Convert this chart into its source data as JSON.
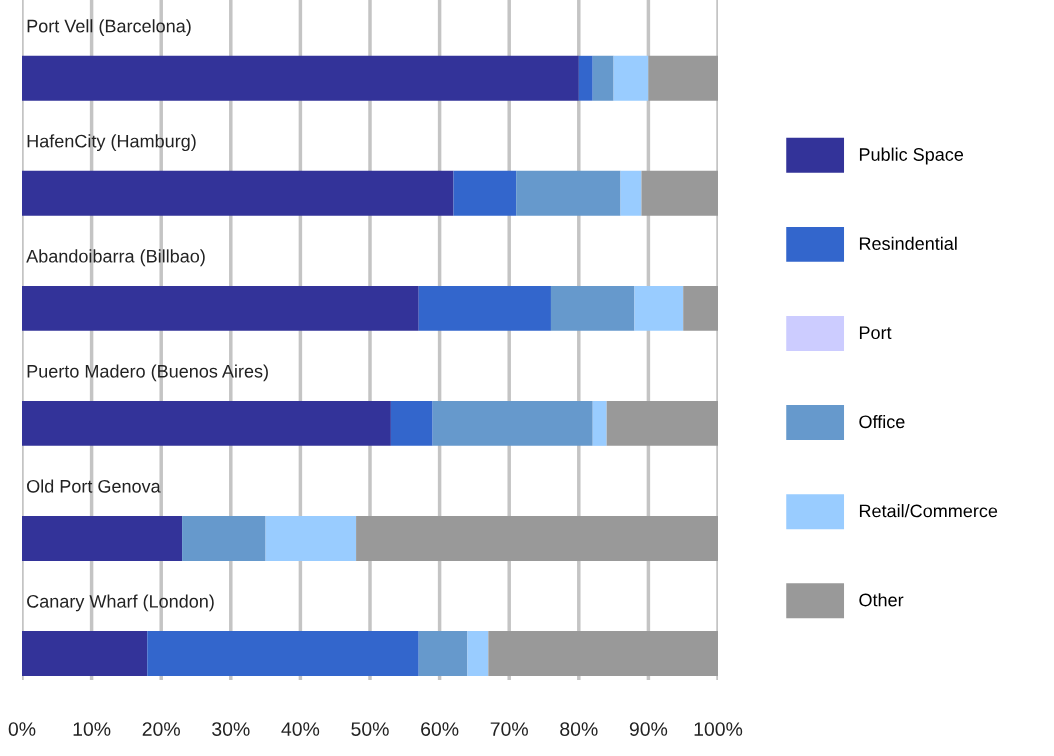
{
  "chart_data": {
    "type": "bar",
    "orientation": "horizontal",
    "stacked": true,
    "categories": [
      "Port Vell (Barcelona)",
      "HafenCity (Hamburg)",
      "Abandoibarra (Billbao)",
      "Puerto Madero (Buenos Aires)",
      "Old Port Genova",
      "Canary Wharf (London)"
    ],
    "series": [
      {
        "name": "Public Space",
        "color": "#333399",
        "values": [
          80,
          62,
          57,
          53,
          23,
          18
        ]
      },
      {
        "name": "Resindential",
        "color": "#3366cc",
        "values": [
          2,
          9,
          19,
          6,
          0,
          39
        ]
      },
      {
        "name": "Port",
        "color": "#ccccff",
        "values": [
          0,
          0,
          0,
          0,
          0,
          0
        ]
      },
      {
        "name": "Office",
        "color": "#6699cc",
        "values": [
          3,
          15,
          12,
          23,
          12,
          7
        ]
      },
      {
        "name": "Retail/Commerce",
        "color": "#99ccff",
        "values": [
          5,
          3,
          7,
          2,
          13,
          3
        ]
      },
      {
        "name": "Other",
        "color": "#999999",
        "values": [
          10,
          11,
          5,
          16,
          52,
          33
        ]
      }
    ],
    "xlim": [
      0,
      100
    ],
    "xticks": [
      {
        "value": 0,
        "label": "0%"
      },
      {
        "value": 10,
        "label": "10%"
      },
      {
        "value": 20,
        "label": "20%"
      },
      {
        "value": 30,
        "label": "30%"
      },
      {
        "value": 40,
        "label": "40%"
      },
      {
        "value": 50,
        "label": "50%"
      },
      {
        "value": 60,
        "label": "60%"
      },
      {
        "value": 70,
        "label": "70%"
      },
      {
        "value": 80,
        "label": "80%"
      },
      {
        "value": 90,
        "label": "90%"
      },
      {
        "value": 100,
        "label": "100%"
      }
    ],
    "grid": "x",
    "legend": "right"
  }
}
